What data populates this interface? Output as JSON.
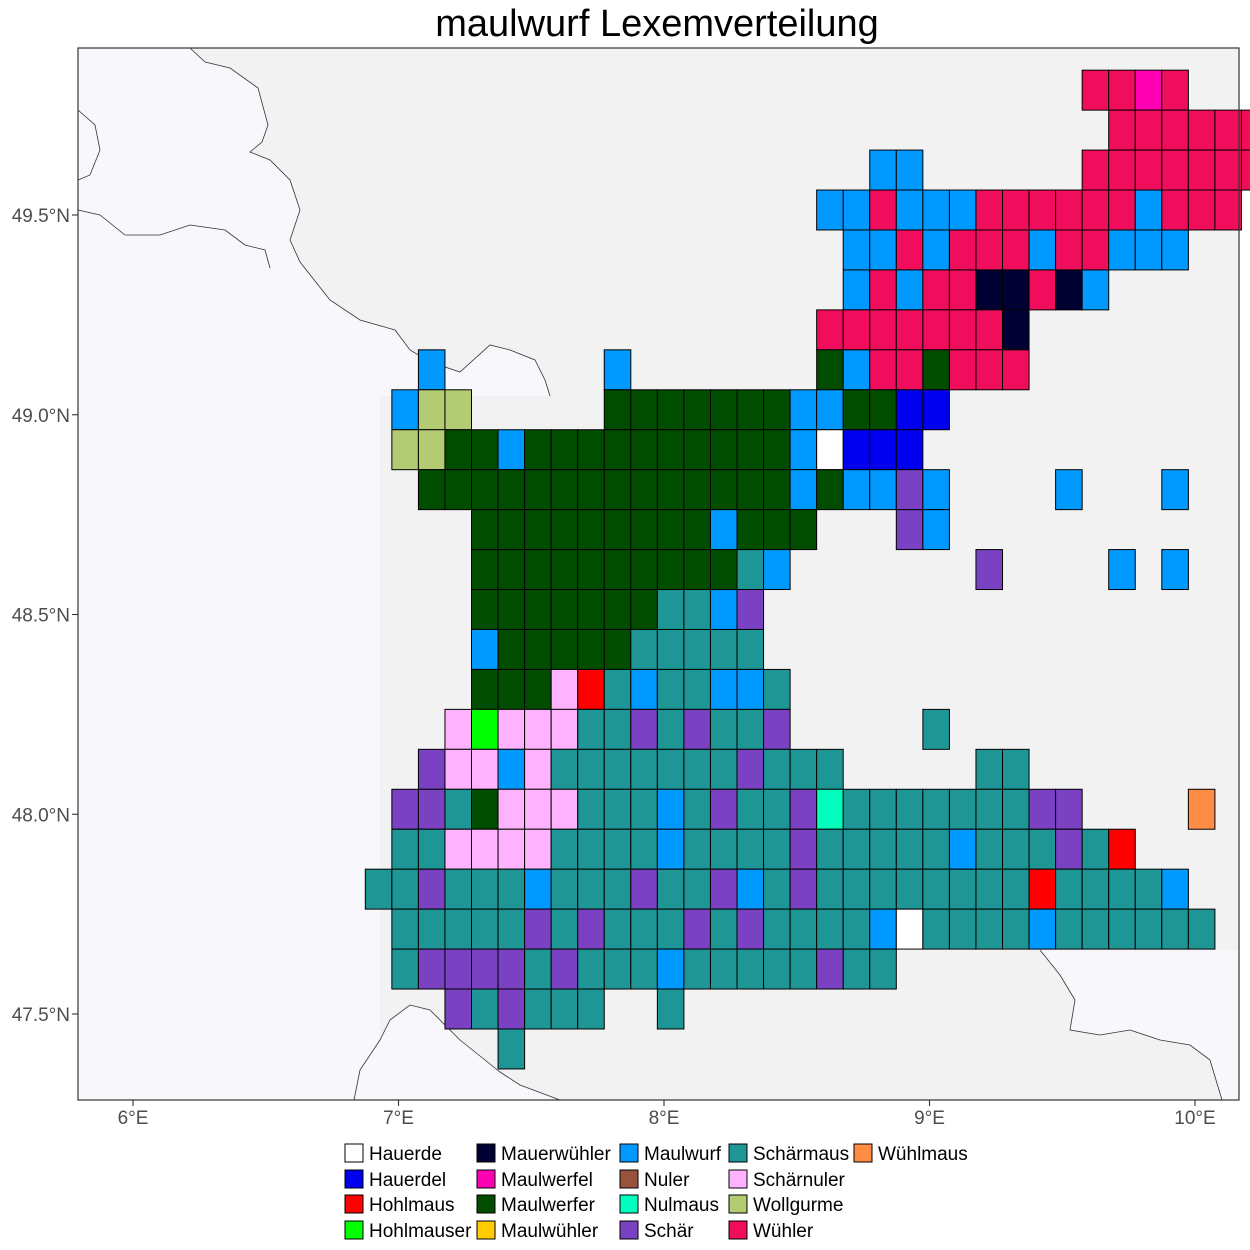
{
  "title": "maulwurf Lexemverteilung",
  "x_ticks": [
    {
      "value": 6,
      "label": "6°E"
    },
    {
      "value": 7,
      "label": "7°E"
    },
    {
      "value": 8,
      "label": "8°E"
    },
    {
      "value": 9,
      "label": "9°E"
    },
    {
      "value": 10,
      "label": "10°E"
    }
  ],
  "y_ticks": [
    {
      "value": 49.5,
      "label": "49.5°N"
    },
    {
      "value": 49.0,
      "label": "49.0°N"
    },
    {
      "value": 48.5,
      "label": "48.5°N"
    },
    {
      "value": 48.0,
      "label": "48.0°N"
    },
    {
      "value": 47.5,
      "label": "47.5°N"
    }
  ],
  "legend": [
    {
      "key": "A",
      "label": "Hauerde",
      "color": "#ffffff"
    },
    {
      "key": "B",
      "label": "Hauerdel",
      "color": "#0000ee"
    },
    {
      "key": "C",
      "label": "Hohlmaus",
      "color": "#ff0000"
    },
    {
      "key": "D",
      "label": "Hohlmauser",
      "color": "#00ff00"
    },
    {
      "key": "E",
      "label": "Mauerwühler",
      "color": "#000033"
    },
    {
      "key": "F",
      "label": "Maulwerfel",
      "color": "#ff00b3"
    },
    {
      "key": "G",
      "label": "Maulwerfer",
      "color": "#004d00"
    },
    {
      "key": "H",
      "label": "Maulwühler",
      "color": "#ffcc00"
    },
    {
      "key": "I",
      "label": "Maulwurf",
      "color": "#0099ff"
    },
    {
      "key": "J",
      "label": "Nuler",
      "color": "#99523d"
    },
    {
      "key": "K",
      "label": "Nulmaus",
      "color": "#00ffbf"
    },
    {
      "key": "L",
      "label": "Schär",
      "color": "#7a42c2"
    },
    {
      "key": "M",
      "label": "Schärmaus",
      "color": "#1f9696"
    },
    {
      "key": "N",
      "label": "Schärnuler",
      "color": "#ffb3ff"
    },
    {
      "key": "O",
      "label": "Wollgurme",
      "color": "#b3cc73"
    },
    {
      "key": "P",
      "label": "Wühler",
      "color": "#f00d5c"
    },
    {
      "key": "Q",
      "label": "Wühlmaus",
      "color": "#ff8c45"
    }
  ],
  "grid": {
    "lon0": 6.875,
    "lat0": 49.8625,
    "dlon": 0.1,
    "dlat": 0.1,
    "rows": [
      "...........................PPFP...",
      "............................PPPPPP.",
      "...................II......PPPPPPPP",
      ".................IIPIIIPPPPPPIPPP..",
      "..................IIPIPPPIPPIII....",
      "..................IPIPPEEPEI.......",
      ".................PPPPPPPE..........",
      "..I......I.......GIPPGPPP..........",
      ".IOO.....GGGGGGGIIGGBB.............",
      ".OOGGIGGGGGGGGGGIABBB..............",
      "..GGGGGGGGGGGGGGIGIILI....I...I....",
      "....GGGGGGGGGIGGG...LI.............",
      "....GGGGGGGGGGMI.......L....I.I....",
      "....GGGGGGGMMIL....................",
      "....IGGGGGMMMMM....................",
      "....GGGNCMIMMIIM...................",
      "...NDNNNMMLMLMML.....M.............",
      "..LNNINMMMMMMMLMMM.....MM..........",
      ".LLMGNNNMMMIMLMMLKMMMMMMMLL....Q...",
      ".MMNNNNMMMMIMMMMLMMMMMIMMMLMC......",
      "MMLMMMIMMMLMMLIMLMMMMMMMMCMMMMI....",
      ".MMMMMLMLMMMLMLMMMMIAMMMMIMMMMMM...",
      ".MLLLLMLMMMIMMMMMLMM...............",
      "...LMLMMM..M.......................",
      ".....M............................."
    ]
  }
}
